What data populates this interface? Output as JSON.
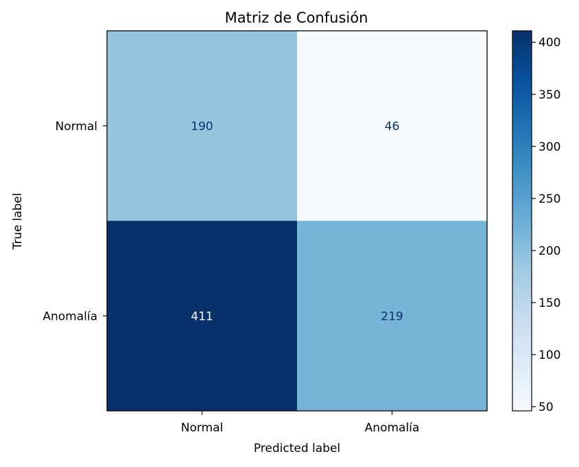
{
  "chart_data": {
    "type": "heatmap",
    "title": "Matriz de Confusión",
    "xlabel": "Predicted label",
    "ylabel": "True label",
    "x_categories": [
      "Normal",
      "Anomalía"
    ],
    "y_categories": [
      "Normal",
      "Anomalía"
    ],
    "values": [
      [
        190,
        46
      ],
      [
        411,
        219
      ]
    ],
    "colormap": "Blues",
    "colorbar": {
      "min": 46,
      "max": 411,
      "ticks": [
        50,
        100,
        150,
        200,
        250,
        300,
        350,
        400
      ],
      "tick_labels": [
        "50",
        "100",
        "150",
        "200",
        "250",
        "300",
        "350",
        "400"
      ]
    },
    "text_colors": {
      "dark_on_light": "#08306b",
      "light_on_dark": "#ffffff"
    }
  }
}
